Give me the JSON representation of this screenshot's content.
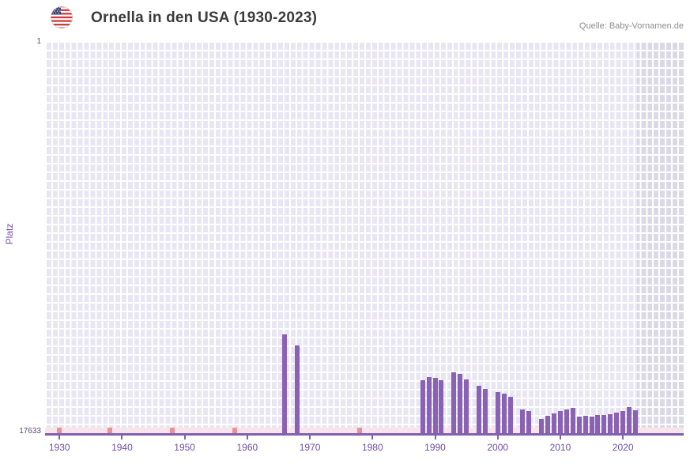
{
  "header": {
    "title": "Ornella in den USA (1930-2023)",
    "source": "Quelle: Baby-Vornamen.de",
    "flag_icon": "us-flag-icon"
  },
  "chart_data": {
    "type": "bar",
    "title": "Ornella in den USA (1930-2023)",
    "xlabel": "",
    "ylabel": "Platz",
    "grid": true,
    "legend": false,
    "y_axis": {
      "top_label": "1",
      "bottom_label": "17633",
      "min": 1,
      "max": 17633,
      "inverted": true
    },
    "x_range": [
      1927.7,
      2029.7
    ],
    "x_ticks": [
      1930,
      1940,
      1950,
      1960,
      1970,
      1980,
      1990,
      2000,
      2010,
      2020
    ],
    "bars": [
      {
        "year": 1966,
        "rank": 13200
      },
      {
        "year": 1968,
        "rank": 13700
      },
      {
        "year": 1988,
        "rank": 15250
      },
      {
        "year": 1989,
        "rank": 15100
      },
      {
        "year": 1990,
        "rank": 15150
      },
      {
        "year": 1991,
        "rank": 15250
      },
      {
        "year": 1993,
        "rank": 14900
      },
      {
        "year": 1994,
        "rank": 14950
      },
      {
        "year": 1995,
        "rank": 15200
      },
      {
        "year": 1997,
        "rank": 15500
      },
      {
        "year": 1998,
        "rank": 15650
      },
      {
        "year": 2000,
        "rank": 15800
      },
      {
        "year": 2001,
        "rank": 15850
      },
      {
        "year": 2002,
        "rank": 16000
      },
      {
        "year": 2004,
        "rank": 16550
      },
      {
        "year": 2005,
        "rank": 16650
      },
      {
        "year": 2007,
        "rank": 17000
      },
      {
        "year": 2008,
        "rank": 16850
      },
      {
        "year": 2009,
        "rank": 16750
      },
      {
        "year": 2010,
        "rank": 16650
      },
      {
        "year": 2011,
        "rank": 16550
      },
      {
        "year": 2012,
        "rank": 16500
      },
      {
        "year": 2013,
        "rank": 16900
      },
      {
        "year": 2014,
        "rank": 16850
      },
      {
        "year": 2015,
        "rank": 16880
      },
      {
        "year": 2016,
        "rank": 16800
      },
      {
        "year": 2017,
        "rank": 16820
      },
      {
        "year": 2018,
        "rank": 16780
      },
      {
        "year": 2019,
        "rank": 16700
      },
      {
        "year": 2020,
        "rank": 16650
      },
      {
        "year": 2021,
        "rank": 16450
      },
      {
        "year": 2022,
        "rank": 16600
      }
    ],
    "no_rank_marker_years": [
      1930,
      1938,
      1948,
      1958,
      1978
    ],
    "highlight_band": {
      "from_year": 2022.3
    },
    "colors": {
      "bar": "#8a62b3",
      "grid_background": "#e9e6f3",
      "grid_line": "#ffffff",
      "recent_band": "#dcd9e6",
      "unranked_strip": "#f8e4ea",
      "no_rank_marker": "#ea9097",
      "axis": "#8060b0",
      "axis_text": "#6f4da5",
      "y_tick_text": "#594a80",
      "title_text": "#3b3b3b",
      "source_text": "#8d8d8d"
    }
  }
}
